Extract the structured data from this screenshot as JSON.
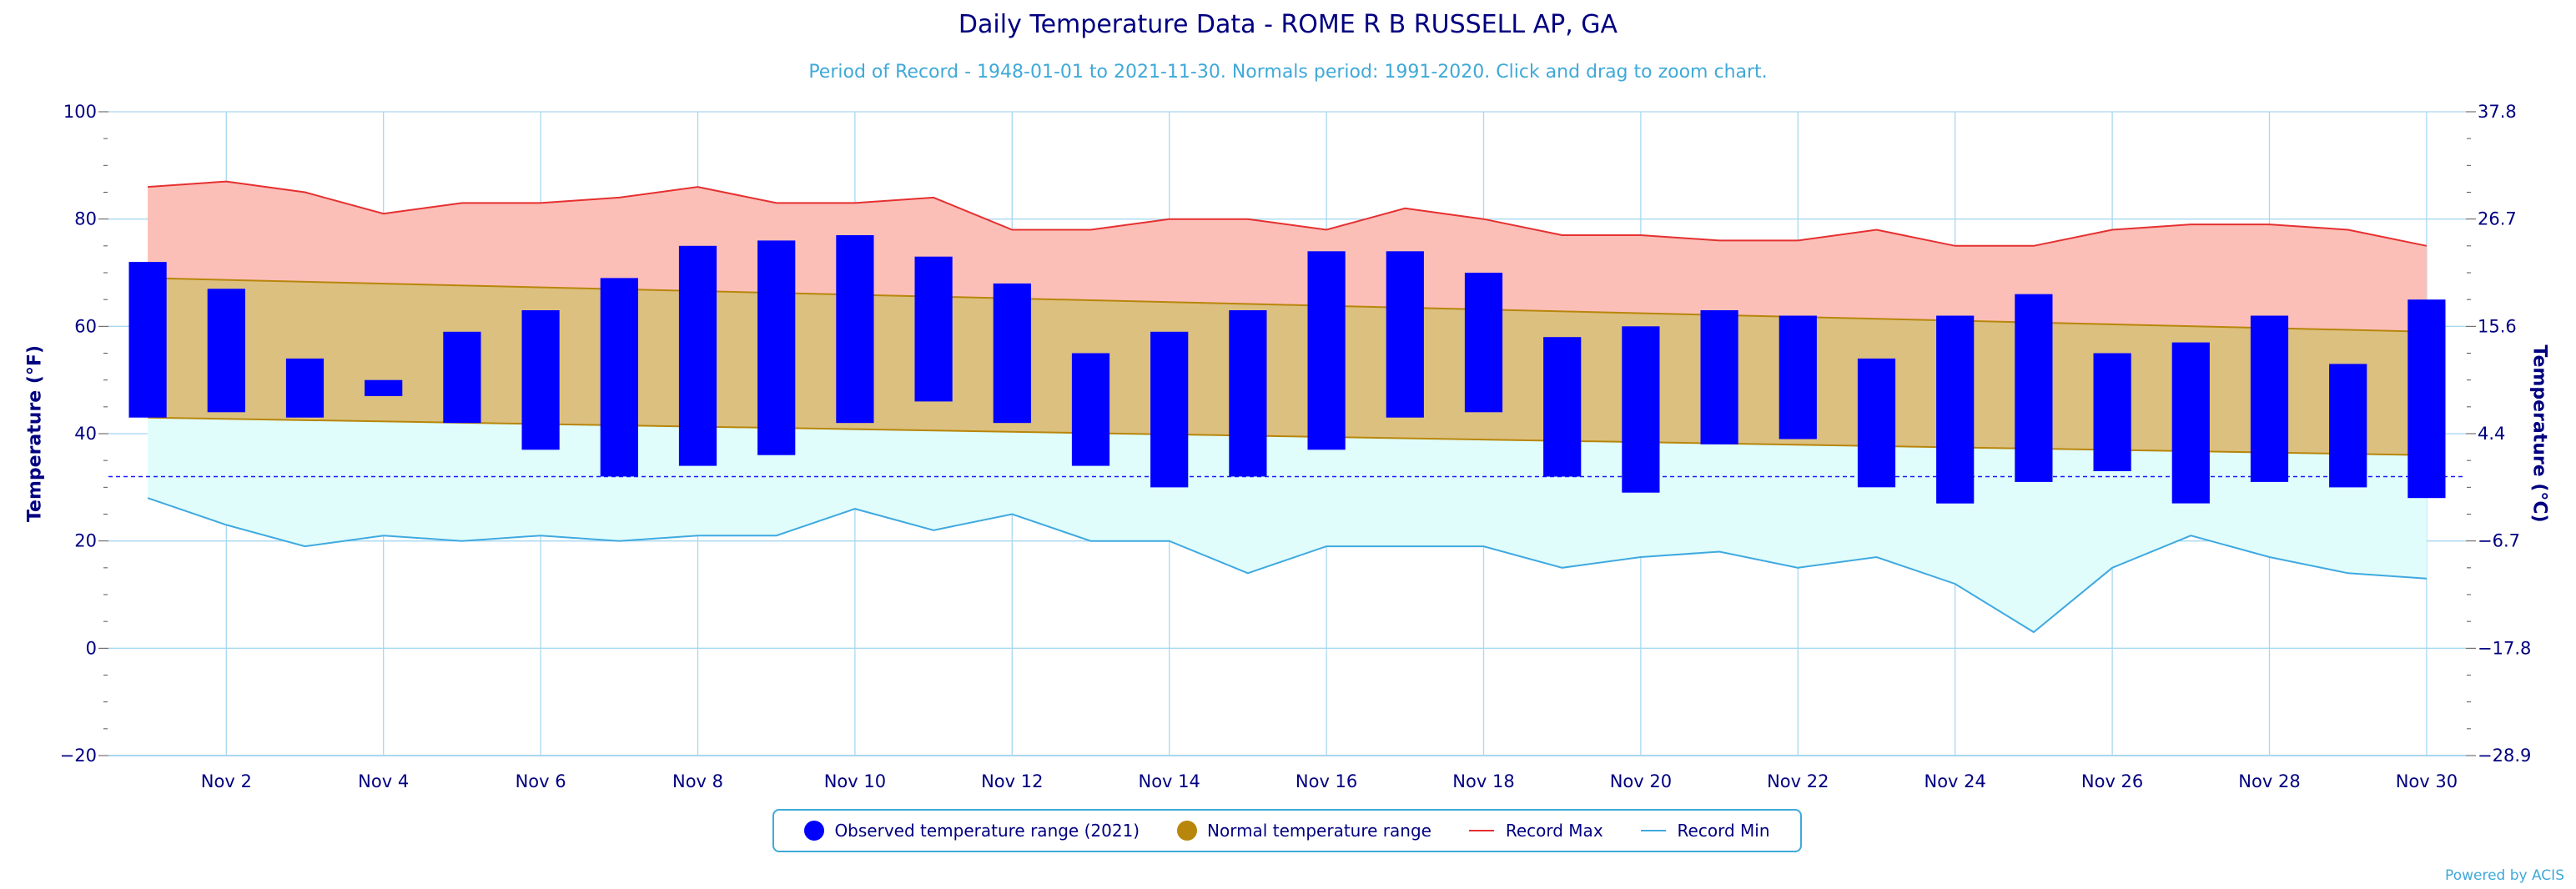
{
  "header": {
    "title": "Daily Temperature Data - ROME R B RUSSELL AP, GA",
    "subtitle": "Period of Record - 1948-01-01 to 2021-11-30. Normals period: 1991-2020. Click and drag to zoom chart."
  },
  "footer": {
    "credit": "Powered by ACIS"
  },
  "colors": {
    "observed": "#0000ff",
    "normal": "#b8860b",
    "normal_fill": "#dcc080",
    "record_max": "#e53030",
    "record_max_fill": "#fbbfb8",
    "record_min": "#3fa9e0",
    "record_min_fill": "#e0fdfb",
    "freezing_line": "#1a1aff",
    "axis_text": "#000080",
    "grid": "#a8d8f0"
  },
  "chart_data": {
    "type": "bar",
    "title": "Daily Temperature Data - ROME R B RUSSELL AP, GA",
    "subtitle": "Period of Record - 1948-01-01 to 2021-11-30. Normals period: 1991-2020. Click and drag to zoom chart.",
    "ylabel": "Temperature (°F)",
    "ylabel_right": "Temperature (°C)",
    "ylim": [
      -20,
      100
    ],
    "yticks": [
      "100",
      "80",
      "60",
      "40",
      "20",
      "0",
      "−20"
    ],
    "yticks_values": [
      100,
      80,
      60,
      40,
      20,
      0,
      -20
    ],
    "yticks_right": [
      "37.8",
      "26.7",
      "15.6",
      "4.4",
      "−6.7",
      "−17.8",
      "−28.9"
    ],
    "x": [
      1,
      2,
      3,
      4,
      5,
      6,
      7,
      8,
      9,
      10,
      11,
      12,
      13,
      14,
      15,
      16,
      17,
      18,
      19,
      20,
      21,
      22,
      23,
      24,
      25,
      26,
      27,
      28,
      29,
      30
    ],
    "xlim": [
      0.5,
      30.5
    ],
    "xtick_labels": [
      "Nov 2",
      "Nov 4",
      "Nov 6",
      "Nov 8",
      "Nov 10",
      "Nov 12",
      "Nov 14",
      "Nov 16",
      "Nov 18",
      "Nov 20",
      "Nov 22",
      "Nov 24",
      "Nov 26",
      "Nov 28",
      "Nov 30"
    ],
    "xtick_days": [
      2,
      4,
      6,
      8,
      10,
      12,
      14,
      16,
      18,
      20,
      22,
      24,
      26,
      28,
      30
    ],
    "grid": true,
    "legend_position": "bottom-center",
    "freezing_line": 32,
    "series": [
      {
        "name": "Observed temperature range (2021)",
        "kind": "range-bar",
        "high": [
          72,
          67,
          54,
          50,
          59,
          63,
          69,
          75,
          76,
          77,
          73,
          68,
          55,
          59,
          63,
          74,
          74,
          70,
          58,
          60,
          63,
          62,
          54,
          62,
          66,
          55,
          57,
          62,
          53,
          65
        ],
        "low": [
          43,
          44,
          43,
          47,
          42,
          37,
          32,
          34,
          36,
          42,
          46,
          42,
          34,
          30,
          32,
          37,
          43,
          44,
          32,
          29,
          38,
          39,
          30,
          27,
          31,
          33,
          27,
          31,
          30,
          28
        ]
      },
      {
        "name": "Normal temperature range",
        "kind": "band",
        "high_start": 69,
        "high_end": 59,
        "low_start": 43,
        "low_end": 36
      },
      {
        "name": "Record Max",
        "kind": "line",
        "values": [
          86,
          87,
          85,
          81,
          83,
          83,
          84,
          86,
          83,
          83,
          84,
          78,
          78,
          80,
          80,
          78,
          82,
          80,
          77,
          77,
          76,
          76,
          78,
          75,
          75,
          78,
          79,
          79,
          78,
          75
        ]
      },
      {
        "name": "Record Min",
        "kind": "line",
        "values": [
          28,
          23,
          19,
          21,
          20,
          21,
          20,
          21,
          21,
          26,
          22,
          25,
          20,
          20,
          14,
          19,
          19,
          19,
          15,
          17,
          18,
          15,
          17,
          12,
          3,
          15,
          21,
          17,
          14,
          13
        ]
      }
    ]
  }
}
